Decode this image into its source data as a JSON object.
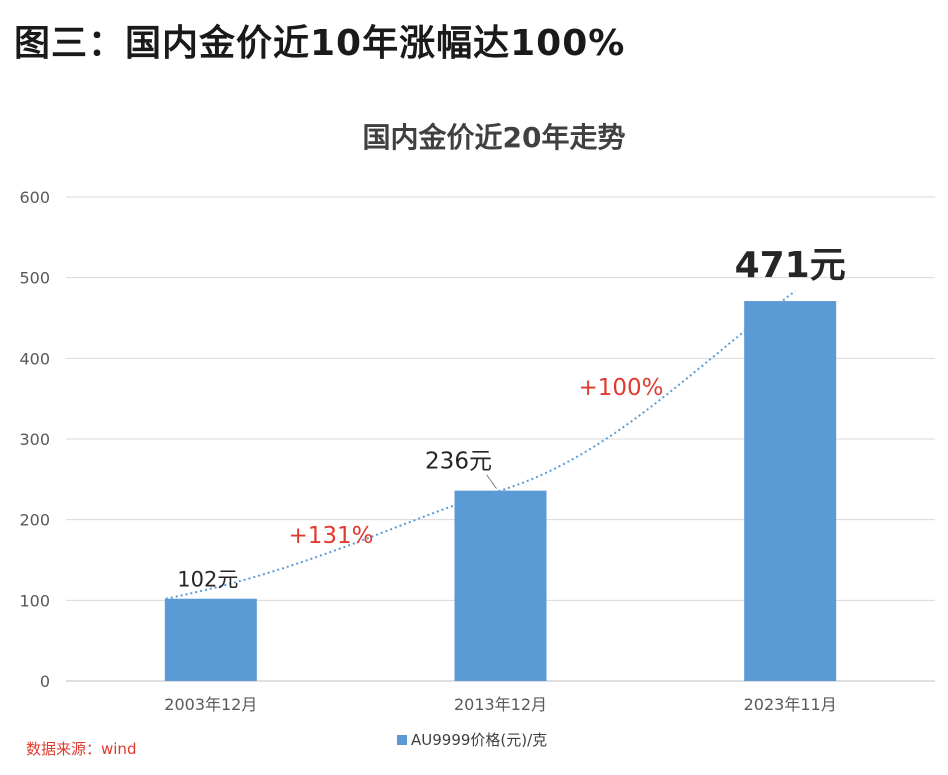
{
  "heading": "图三：国内金价近10年涨幅达100%",
  "source": "数据来源：wind",
  "chart_data": {
    "type": "bar",
    "title": "国内金价近20年走势",
    "categories": [
      "2003年12月",
      "2013年12月",
      "2023年11月"
    ],
    "series": [
      {
        "name": "AU9999价格(元)/克",
        "values": [
          102,
          236,
          471
        ]
      }
    ],
    "data_labels": [
      "102元",
      "236元",
      "471元"
    ],
    "annotations": [
      "+131%",
      "+100%"
    ],
    "ylim": [
      0,
      600
    ],
    "yticks": [
      0,
      100,
      200,
      300,
      400,
      500,
      600
    ],
    "grid": true,
    "trendline": "dotted",
    "legend_position": "bottom",
    "colors": {
      "bar": "#5b9bd5",
      "trendline": "#5b9bd5",
      "annotation": "#e03a2e",
      "grid": "#d9d9d9",
      "axis_text": "#595959",
      "title": "#404040"
    }
  }
}
